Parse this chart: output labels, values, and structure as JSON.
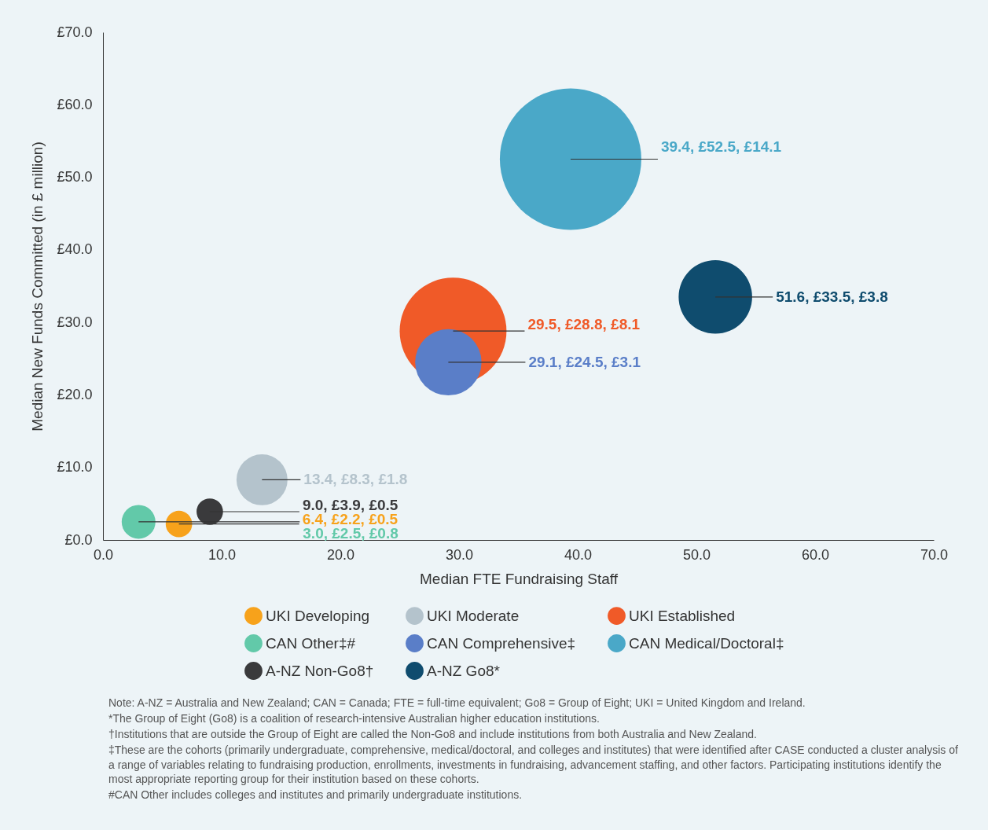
{
  "chart_data": {
    "type": "bubble",
    "xlabel": "Median FTE Fundraising Staff",
    "ylabel": "Median New Funds Committed (in £ million)",
    "xlim": [
      0,
      70
    ],
    "xticks": [
      {
        "value": 0,
        "label": "0.0"
      },
      {
        "value": 10,
        "label": "10.0"
      },
      {
        "value": 20,
        "label": "20.0"
      },
      {
        "value": 30,
        "label": "30.0"
      },
      {
        "value": 40,
        "label": "40.0"
      },
      {
        "value": 50,
        "label": "50.0"
      },
      {
        "value": 60,
        "label": "60.0"
      },
      {
        "value": 70,
        "label": "70.0"
      }
    ],
    "ylim": [
      0,
      70
    ],
    "yticks": [
      {
        "value": 0,
        "label": "£0.0"
      },
      {
        "value": 10,
        "label": "£10.0"
      },
      {
        "value": 20,
        "label": "£20.0"
      },
      {
        "value": 30,
        "label": "£30.0"
      },
      {
        "value": 40,
        "label": "£40.0"
      },
      {
        "value": 50,
        "label": "£50.0"
      },
      {
        "value": 60,
        "label": "£60.0"
      },
      {
        "value": 70,
        "label": "£70.0"
      }
    ],
    "legend": "bottom",
    "grid": false,
    "series": [
      {
        "name": "UKI Developing",
        "color": "#f7a21b",
        "x": [
          6.4
        ],
        "values": [
          2.2
        ],
        "sizes": [
          0.035
        ],
        "value_labels": [
          "6.4,  £2.2,  £0.5"
        ]
      },
      {
        "name": "UKI Moderate",
        "color": "#b4c3cc",
        "x": [
          13.4
        ],
        "values": [
          8.3
        ],
        "sizes": [
          0.13
        ],
        "value_labels": [
          "13.4,  £8.3,  £1.8"
        ]
      },
      {
        "name": "UKI Established",
        "color": "#f05a28",
        "x": [
          29.5
        ],
        "values": [
          28.8
        ],
        "sizes": [
          0.57
        ],
        "value_labels": [
          "29.5,  £28.8,  £8.1"
        ]
      },
      {
        "name": "CAN Other‡#",
        "color": "#62c9a9",
        "x": [
          3.0
        ],
        "values": [
          2.5
        ],
        "sizes": [
          0.057
        ],
        "value_labels": [
          "3.0,  £2.5,  £0.8"
        ]
      },
      {
        "name": "CAN Comprehensive‡",
        "color": "#5a7ec8",
        "x": [
          29.1
        ],
        "values": [
          24.5
        ],
        "sizes": [
          0.22
        ],
        "value_labels": [
          "29.1,  £24.5,  £3.1"
        ]
      },
      {
        "name": "CAN Medical/Doctoral‡",
        "color": "#4aa8c8",
        "x": [
          39.4
        ],
        "values": [
          52.5
        ],
        "sizes": [
          1
        ],
        "value_labels": [
          "39.4,  £52.5,  £14.1"
        ]
      },
      {
        "name": "A-NZ Non-Go8†",
        "color": "#3a3a3c",
        "x": [
          9.0
        ],
        "values": [
          3.9
        ],
        "sizes": [
          0.035
        ],
        "value_labels": [
          "9.0,  £3.9,  £0.5"
        ]
      },
      {
        "name": "A-NZ Go8*",
        "color": "#0f4c6e",
        "x": [
          51.6
        ],
        "values": [
          33.5
        ],
        "sizes": [
          0.27
        ],
        "value_labels": [
          "51.6,  £33.5,  £3.8"
        ]
      }
    ],
    "annotations": [
      "Note: A-NZ = Australia and New Zealand; CAN = Canada; FTE = full-time equivalent; Go8 = Group of Eight; UKI = United Kingdom and Ireland.",
      "*The Group of Eight (Go8) is a coalition of research-intensive Australian higher education institutions.",
      "†Institutions that are outside the Group of Eight are called the Non-Go8 and include institutions from both Australia and New Zealand.",
      "‡These are the cohorts (primarily undergraduate, comprehensive, medical/doctoral, and colleges and institutes) that were identified after CASE conducted a cluster analysis of a range of variables relating to fundraising production, enrollments, investments in fundraising, advancement staffing, and other factors. Participating institutions identify the most appropriate reporting group for their institution based on these cohorts.",
      "#CAN Other includes colleges and institutes and primarily undergraduate institutions."
    ]
  }
}
